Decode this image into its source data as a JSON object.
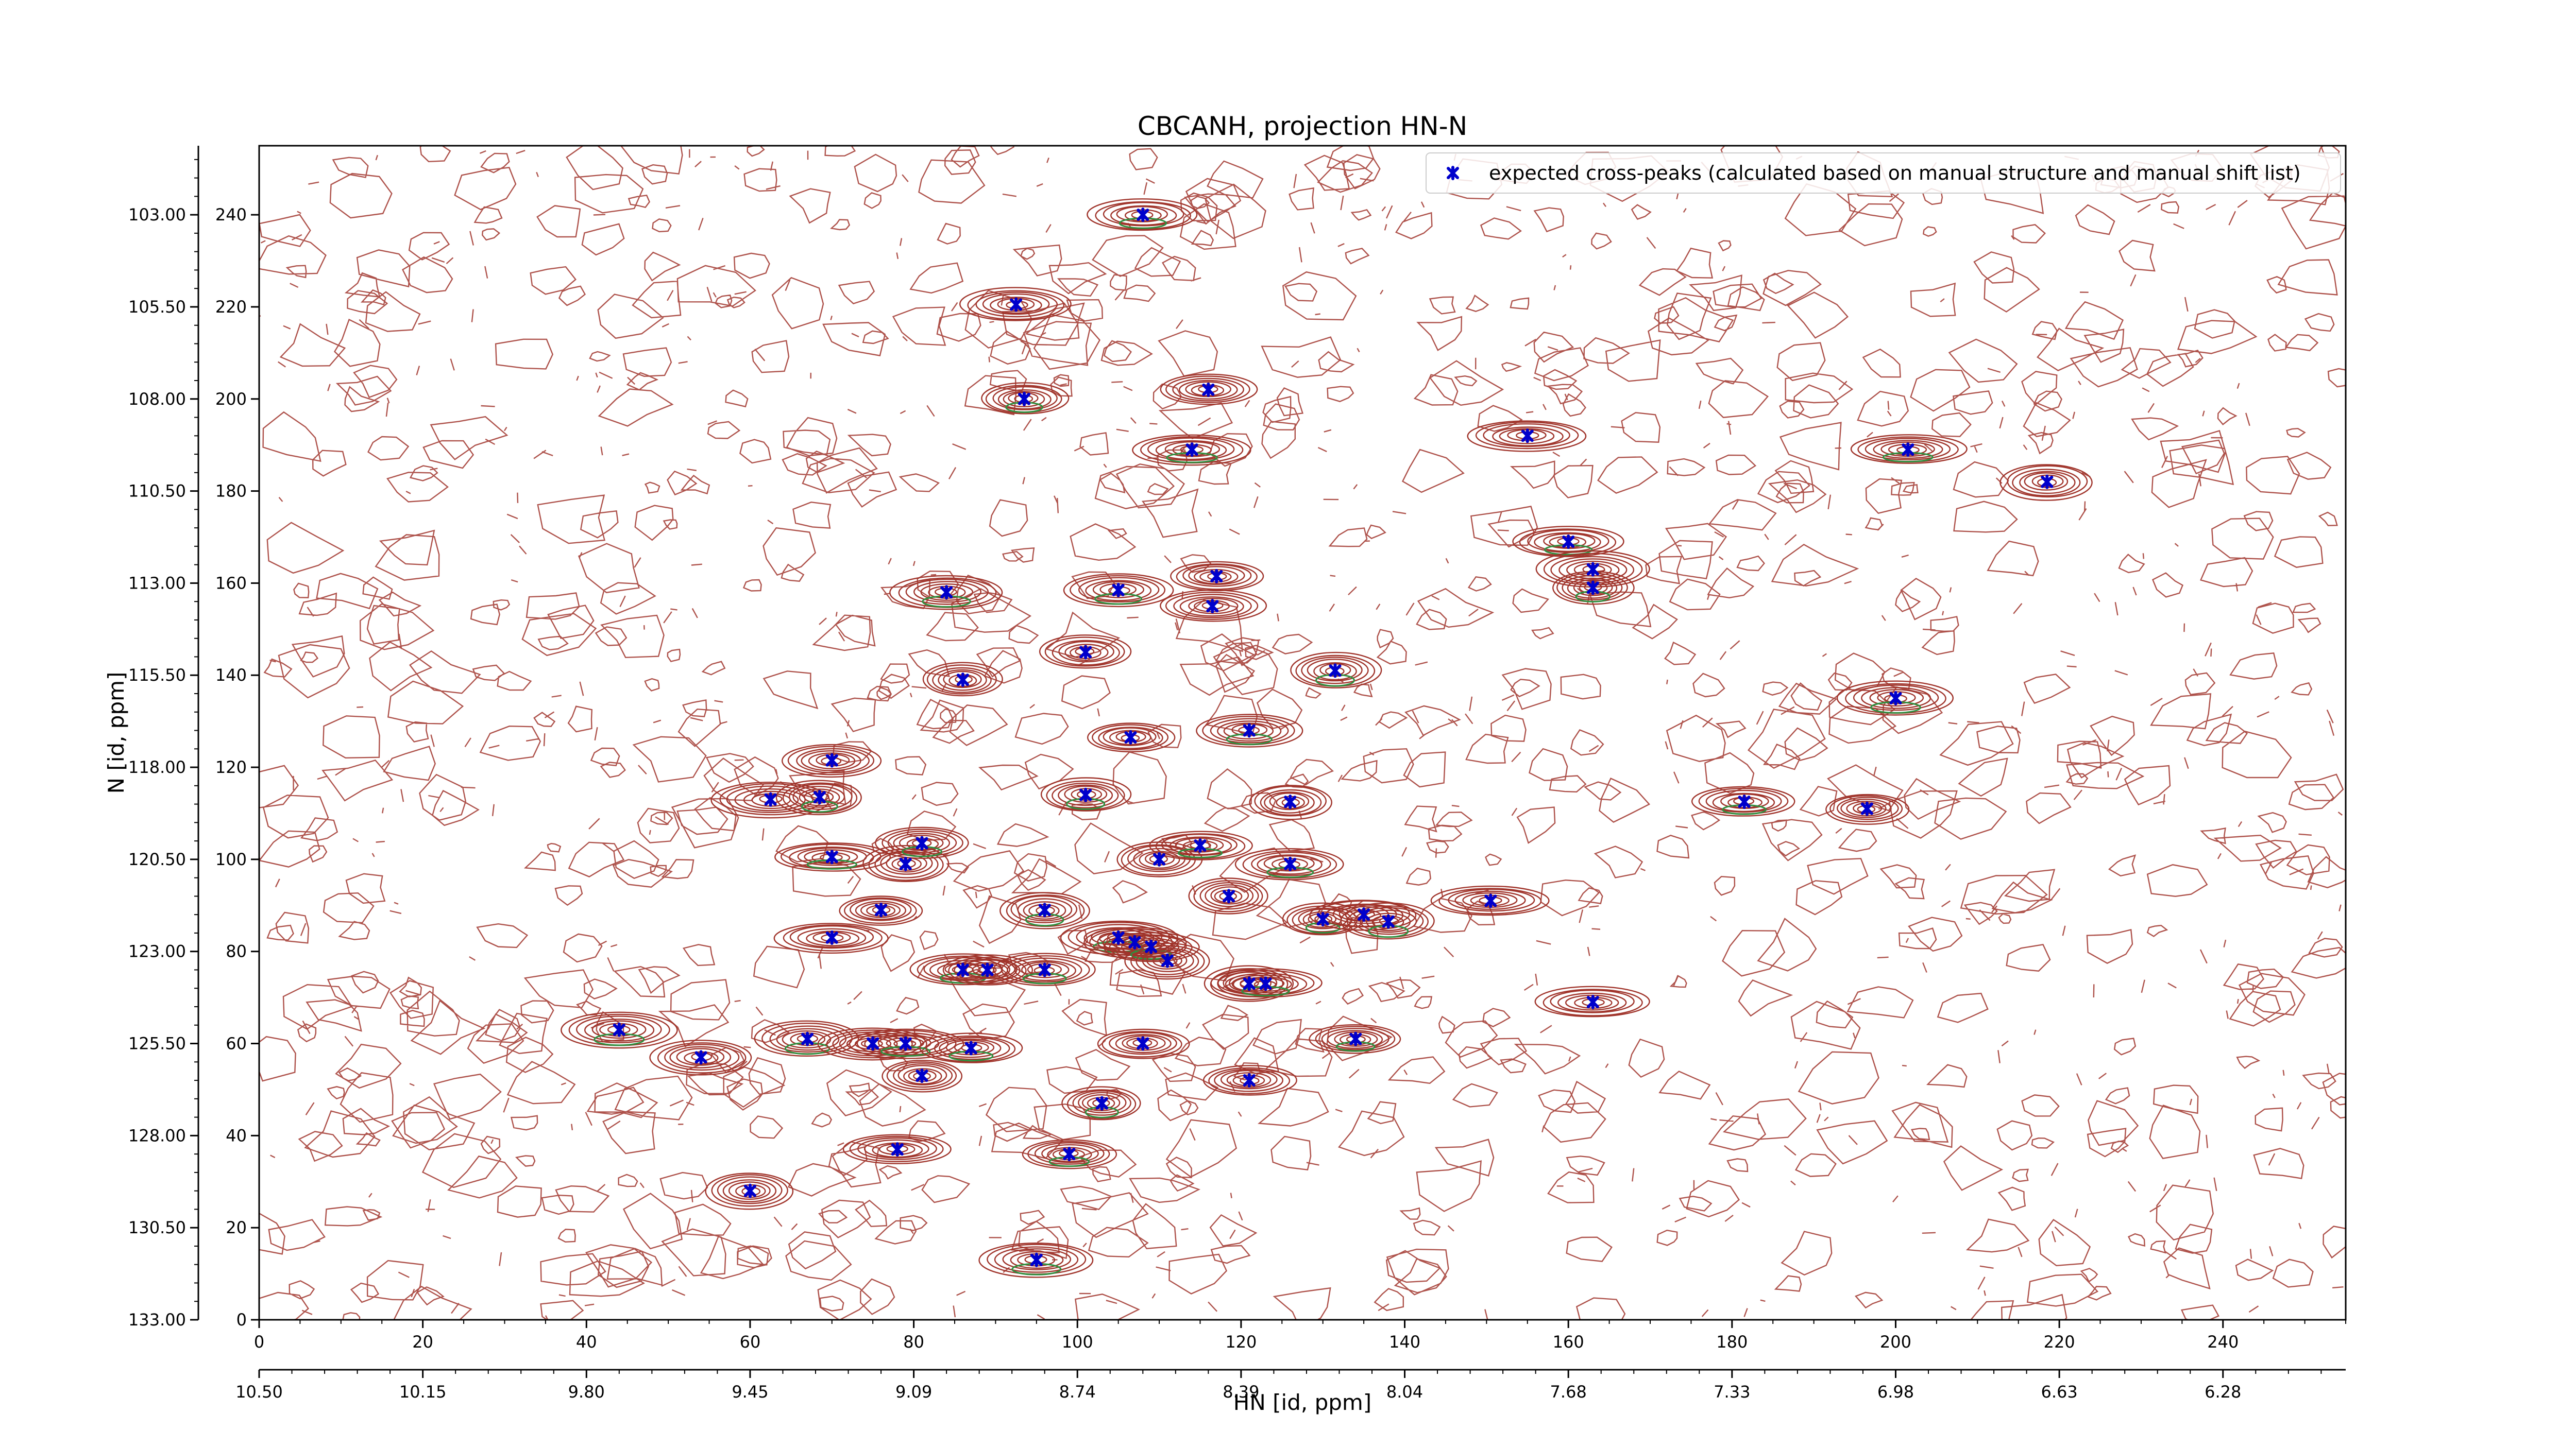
{
  "chart_data": {
    "type": "scatter",
    "title": "CBCANH, projection HN-N",
    "xlabel": "HN [id, ppm]",
    "ylabel": "N [id, ppm]",
    "legend": {
      "placement": "top-right",
      "entries": [
        {
          "label": "expected cross-peaks (calculated based on manual structure and manual shift list)",
          "color": "#0000cc",
          "marker": "x"
        }
      ]
    },
    "colors": {
      "positive_contour": "#a0342b",
      "negative_contour": "#2f8f3f",
      "marker": "#0000cc"
    },
    "x_index_axis": {
      "range": [
        0,
        255
      ],
      "ticks": [
        "0",
        "20",
        "40",
        "60",
        "80",
        "100",
        "120",
        "140",
        "160",
        "180",
        "200",
        "220",
        "240"
      ],
      "tick_values": [
        0,
        20,
        40,
        60,
        80,
        100,
        120,
        140,
        160,
        180,
        200,
        220,
        240
      ]
    },
    "x_ppm_axis": {
      "ticks": [
        "10.50",
        "10.15",
        "9.80",
        "9.45",
        "9.09",
        "8.74",
        "8.39",
        "8.04",
        "7.68",
        "7.33",
        "6.98",
        "6.63",
        "6.28"
      ],
      "tick_values": [
        0,
        20,
        40,
        60,
        80,
        100,
        120,
        140,
        160,
        180,
        200,
        220,
        240
      ]
    },
    "y_index_axis": {
      "range": [
        0,
        255
      ],
      "ticks": [
        "0",
        "20",
        "40",
        "60",
        "80",
        "100",
        "120",
        "140",
        "160",
        "180",
        "200",
        "220",
        "240"
      ],
      "tick_values": [
        0,
        20,
        40,
        60,
        80,
        100,
        120,
        140,
        160,
        180,
        200,
        220,
        240
      ]
    },
    "y_ppm_axis": {
      "ticks": [
        "133.00",
        "130.50",
        "128.00",
        "125.50",
        "123.00",
        "120.50",
        "118.00",
        "115.50",
        "113.00",
        "110.50",
        "108.00",
        "105.50",
        "103.00"
      ],
      "tick_values": [
        0,
        20,
        40,
        60,
        80,
        100,
        120,
        140,
        160,
        180,
        200,
        220,
        240
      ]
    },
    "series": [
      {
        "name": "expected cross-peaks (calculated based on manual structure and manual shift list)",
        "points": [
          [
            108,
            240
          ],
          [
            92.5,
            220.5
          ],
          [
            93.5,
            200
          ],
          [
            116,
            202
          ],
          [
            114,
            189
          ],
          [
            155,
            192
          ],
          [
            201.5,
            189
          ],
          [
            218.5,
            182
          ],
          [
            160,
            169
          ],
          [
            163,
            163
          ],
          [
            163,
            159
          ],
          [
            117,
            161.5
          ],
          [
            105,
            158.5
          ],
          [
            116.5,
            155
          ],
          [
            84,
            158
          ],
          [
            101,
            145
          ],
          [
            131.5,
            141
          ],
          [
            86,
            139
          ],
          [
            200,
            135
          ],
          [
            106.5,
            126.5
          ],
          [
            121,
            128
          ],
          [
            62.5,
            113
          ],
          [
            68.5,
            113.5
          ],
          [
            70,
            121.5
          ],
          [
            101,
            114
          ],
          [
            126,
            112.5
          ],
          [
            181.5,
            112.5
          ],
          [
            196.5,
            111
          ],
          [
            70,
            100.5
          ],
          [
            79,
            99
          ],
          [
            81,
            103.5
          ],
          [
            110,
            100
          ],
          [
            115,
            103
          ],
          [
            118.5,
            92
          ],
          [
            126,
            99
          ],
          [
            76,
            89
          ],
          [
            96,
            89
          ],
          [
            70,
            83
          ],
          [
            105,
            83
          ],
          [
            107,
            82
          ],
          [
            109,
            81
          ],
          [
            111,
            78
          ],
          [
            130,
            87
          ],
          [
            135,
            88
          ],
          [
            138,
            86.5
          ],
          [
            150.5,
            91
          ],
          [
            86,
            76
          ],
          [
            89,
            76
          ],
          [
            96,
            76
          ],
          [
            121,
            73
          ],
          [
            123,
            73
          ],
          [
            163,
            69
          ],
          [
            44,
            63
          ],
          [
            54,
            57
          ],
          [
            67,
            61
          ],
          [
            75,
            60
          ],
          [
            79,
            60
          ],
          [
            81,
            53
          ],
          [
            87,
            59
          ],
          [
            108,
            60
          ],
          [
            134,
            61
          ],
          [
            121,
            52
          ],
          [
            103,
            47
          ],
          [
            78,
            37
          ],
          [
            99,
            36
          ],
          [
            60,
            28
          ],
          [
            95,
            13
          ]
        ]
      }
    ]
  }
}
